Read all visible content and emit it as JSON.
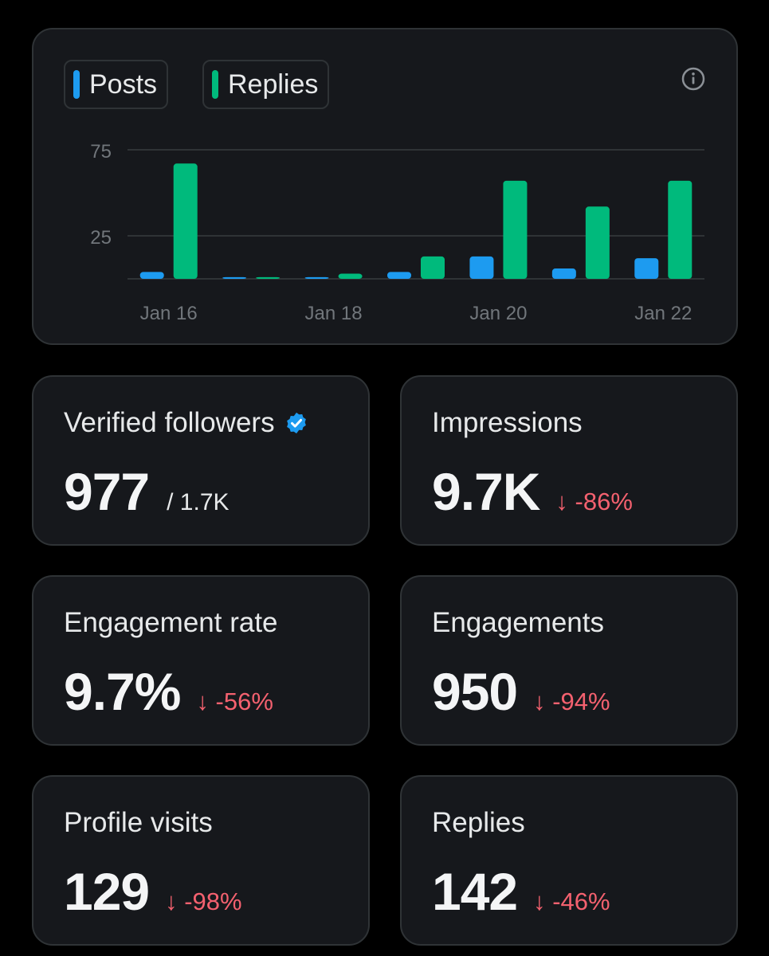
{
  "colors": {
    "posts": "#1d9bf0",
    "replies": "#00ba7c",
    "negative": "#f4616f"
  },
  "legend": {
    "posts_label": "Posts",
    "replies_label": "Replies"
  },
  "chart_data": {
    "type": "bar",
    "categories": [
      "Jan 16",
      "Jan 17",
      "Jan 18",
      "Jan 19",
      "Jan 20",
      "Jan 21",
      "Jan 22"
    ],
    "x_tick_labels": [
      "Jan 16",
      "Jan 18",
      "Jan 20",
      "Jan 22"
    ],
    "series": [
      {
        "name": "Posts",
        "values": [
          4,
          1,
          1,
          4,
          13,
          6,
          12
        ]
      },
      {
        "name": "Replies",
        "values": [
          67,
          1,
          3,
          13,
          57,
          42,
          57
        ]
      }
    ],
    "y_ticks": [
      25,
      75
    ],
    "ylim": [
      0,
      75
    ],
    "grid": true,
    "legend": "top-left"
  },
  "stats": {
    "verified_followers": {
      "title": "Verified followers",
      "value": "977",
      "sub": "/ 1.7K"
    },
    "impressions": {
      "title": "Impressions",
      "value": "9.7K",
      "delta": "↓ -86%"
    },
    "engagement_rate": {
      "title": "Engagement rate",
      "value": "9.7%",
      "delta": "↓ -56%"
    },
    "engagements": {
      "title": "Engagements",
      "value": "950",
      "delta": "↓ -94%"
    },
    "profile_visits": {
      "title": "Profile visits",
      "value": "129",
      "delta": "↓ -98%"
    },
    "replies": {
      "title": "Replies",
      "value": "142",
      "delta": "↓ -46%"
    }
  }
}
